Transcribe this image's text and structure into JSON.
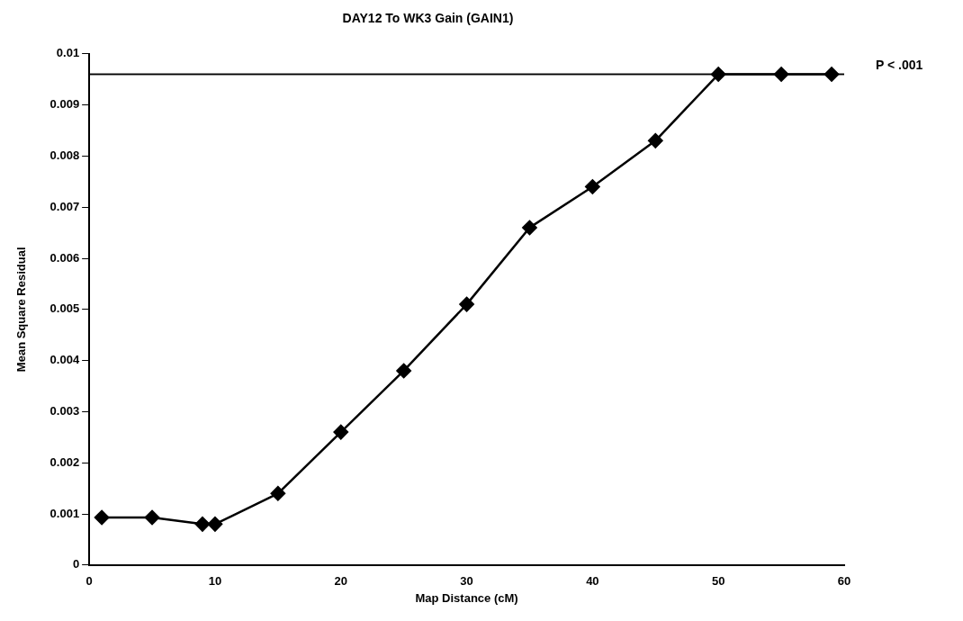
{
  "chart_data": {
    "type": "line",
    "title": "DAY12 To WK3 Gain (GAIN1)",
    "xlabel": "Map Distance (cM)",
    "ylabel": "Mean Square Residual",
    "x": [
      1,
      5,
      9,
      10,
      15,
      20,
      25,
      30,
      35,
      40,
      45,
      50,
      55,
      59
    ],
    "series": [
      {
        "color": "#000000",
        "values": [
          0.00093,
          0.00093,
          0.0008,
          0.0008,
          0.0014,
          0.0026,
          0.0038,
          0.0051,
          0.0066,
          0.0074,
          0.0083,
          0.0096,
          0.0096,
          0.0096
        ]
      }
    ],
    "xlim": [
      0,
      60
    ],
    "xticks": [
      0,
      10,
      20,
      30,
      40,
      50,
      60
    ],
    "ylim": [
      0,
      0.01
    ],
    "yticks": [
      0,
      0.001,
      0.002,
      0.003,
      0.004,
      0.005,
      0.006,
      0.007,
      0.008,
      0.009,
      0.01
    ],
    "ref_lines": [
      {
        "axis": "y",
        "value": 0.0096,
        "label": "P < .001",
        "color": "#000000"
      }
    ],
    "grid": false,
    "legend": false,
    "marker": "diamond",
    "line_style": "solid"
  }
}
